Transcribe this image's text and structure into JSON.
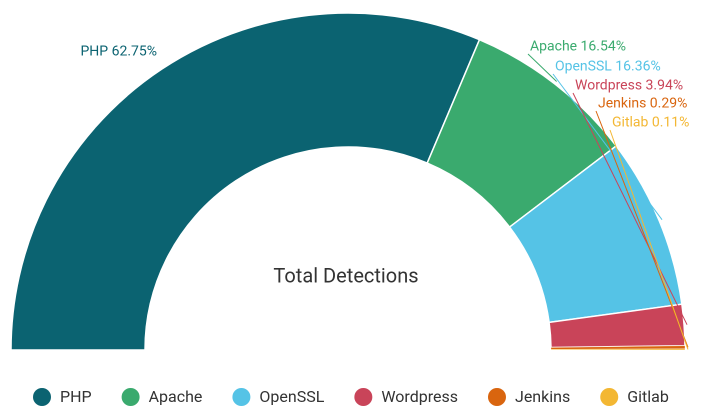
{
  "chart_data": {
    "type": "pie",
    "shape": "half-donut",
    "center_text": "Total Detections",
    "categories": [
      "PHP",
      "Apache",
      "OpenSSL",
      "Wordpress",
      "Jenkins",
      "Gitlab"
    ],
    "values": [
      62.75,
      16.54,
      16.36,
      3.94,
      0.29,
      0.11
    ],
    "value_labels": [
      "PHP 62.75%",
      "Apache 16.54%",
      "OpenSSL 16.36%",
      "Wordpress 3.94%",
      "Jenkins 0.29%",
      "Gitlab 0.11%"
    ],
    "colors": [
      "#0b6371",
      "#3aaa6e",
      "#55c3e6",
      "#c94459",
      "#d9650f",
      "#f3b733"
    ],
    "legend": "bottom"
  }
}
